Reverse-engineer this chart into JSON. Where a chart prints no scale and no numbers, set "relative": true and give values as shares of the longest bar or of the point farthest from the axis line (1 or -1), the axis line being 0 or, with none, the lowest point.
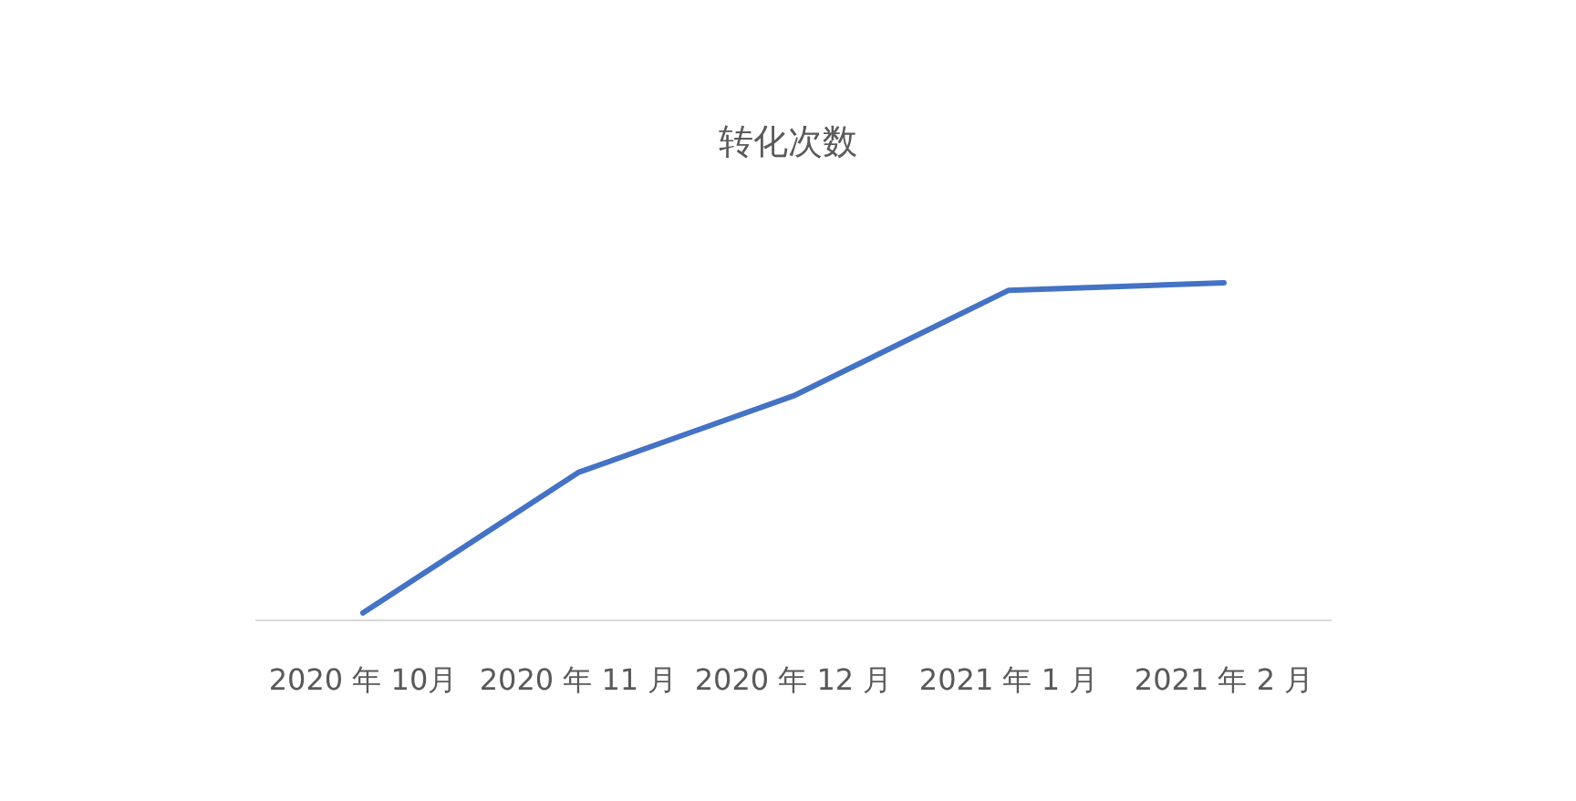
{
  "chart_data": {
    "type": "line",
    "title": "转化次数",
    "relative": true,
    "categories": [
      "2020 年 10月",
      "2020 年 11 月",
      "2020 年 12 月",
      "2021 年 1 月",
      "2021 年 2 月"
    ],
    "series": [
      {
        "color": "#4472c4",
        "values": [
          0.022,
          0.438,
          0.665,
          0.978,
          1
        ]
      }
    ],
    "marker": "none",
    "line_style": "solid"
  }
}
